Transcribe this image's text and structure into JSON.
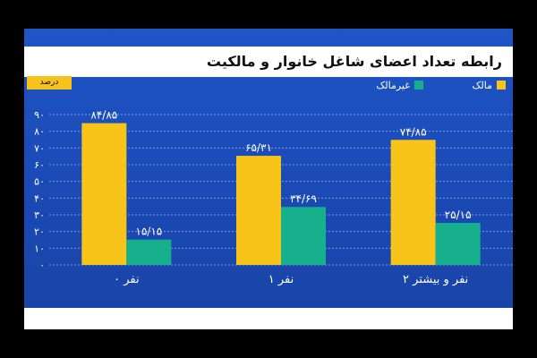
{
  "title": "رابطه تعداد اعضای شاغل خانوار و مالکیت",
  "unit": "درصد",
  "colors": {
    "owner": "#f8c41a",
    "non_owner": "#16b08c",
    "axis_text": "#ffffff"
  },
  "chart_data": {
    "type": "bar",
    "title": "رابطه تعداد اعضای شاغل خانوار و مالکیت",
    "ylabel": "درصد",
    "ylim": [
      0,
      90
    ],
    "yticks": [
      "۰",
      "۱۰",
      "۲۰",
      "۳۰",
      "۴۰",
      "۵۰",
      "۶۰",
      "۷۰",
      "۸۰",
      "۹۰"
    ],
    "categories": [
      "۰ نفر",
      "۱ نفر",
      "۲ نفر و بیشتر"
    ],
    "series": [
      {
        "name": "مالک",
        "color": "#f8c41a",
        "values": [
          84.85,
          65.31,
          74.85
        ],
        "labels": [
          "۸۴/۸۵",
          "۶۵/۳۱",
          "۷۴/۸۵"
        ]
      },
      {
        "name": "غیرمالک",
        "color": "#16b08c",
        "values": [
          15.15,
          34.69,
          25.15
        ],
        "labels": [
          "۱۵/۱۵",
          "۳۴/۶۹",
          "۲۵/۱۵"
        ]
      }
    ],
    "grid": true,
    "legend": "top-right"
  }
}
